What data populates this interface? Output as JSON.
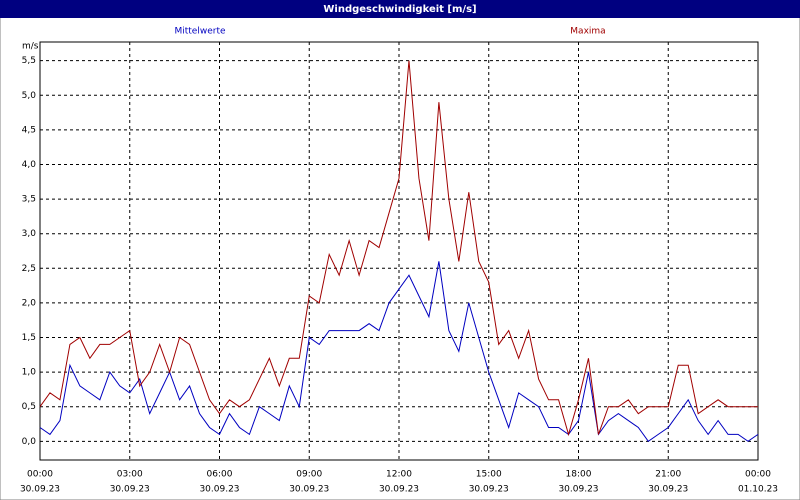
{
  "chart_data": {
    "type": "line",
    "title": "Windgeschwindigkeit [m/s]",
    "y_label": "m/s",
    "x": [
      "30.09.23 00:00",
      "30.09.23 00:20",
      "30.09.23 00:40",
      "30.09.23 01:00",
      "30.09.23 01:20",
      "30.09.23 01:40",
      "30.09.23 02:00",
      "30.09.23 02:20",
      "30.09.23 02:40",
      "30.09.23 03:00",
      "30.09.23 03:20",
      "30.09.23 03:40",
      "30.09.23 04:00",
      "30.09.23 04:20",
      "30.09.23 04:40",
      "30.09.23 05:00",
      "30.09.23 05:20",
      "30.09.23 05:40",
      "30.09.23 06:00",
      "30.09.23 06:20",
      "30.09.23 06:40",
      "30.09.23 07:00",
      "30.09.23 07:20",
      "30.09.23 07:40",
      "30.09.23 08:00",
      "30.09.23 08:20",
      "30.09.23 08:40",
      "30.09.23 09:00",
      "30.09.23 09:20",
      "30.09.23 09:40",
      "30.09.23 10:00",
      "30.09.23 10:20",
      "30.09.23 10:40",
      "30.09.23 11:00",
      "30.09.23 11:20",
      "30.09.23 11:40",
      "30.09.23 12:00",
      "30.09.23 12:20",
      "30.09.23 12:40",
      "30.09.23 13:00",
      "30.09.23 13:20",
      "30.09.23 13:40",
      "30.09.23 14:00",
      "30.09.23 14:20",
      "30.09.23 14:40",
      "30.09.23 15:00",
      "30.09.23 15:20",
      "30.09.23 15:40",
      "30.09.23 16:00",
      "30.09.23 16:20",
      "30.09.23 16:40",
      "30.09.23 17:00",
      "30.09.23 17:20",
      "30.09.23 17:40",
      "30.09.23 18:00",
      "30.09.23 18:20",
      "30.09.23 18:40",
      "30.09.23 19:00",
      "30.09.23 19:20",
      "30.09.23 19:40",
      "30.09.23 20:00",
      "30.09.23 20:20",
      "30.09.23 20:40",
      "30.09.23 21:00",
      "30.09.23 21:20",
      "30.09.23 21:40",
      "30.09.23 22:00",
      "30.09.23 22:20",
      "30.09.23 22:40",
      "30.09.23 23:00",
      "30.09.23 23:20",
      "30.09.23 23:40",
      "01.10.23 00:00"
    ],
    "series": [
      {
        "name": "Mittelwerte",
        "color": "#0000c0",
        "values": [
          0.2,
          0.1,
          0.3,
          1.1,
          0.8,
          0.7,
          0.6,
          1.0,
          0.8,
          0.7,
          0.9,
          0.4,
          0.7,
          1.0,
          0.6,
          0.8,
          0.4,
          0.2,
          0.1,
          0.4,
          0.2,
          0.1,
          0.5,
          0.4,
          0.3,
          0.8,
          0.5,
          1.5,
          1.4,
          1.6,
          1.6,
          1.6,
          1.6,
          1.7,
          1.6,
          2.0,
          2.2,
          2.4,
          2.1,
          1.8,
          2.6,
          1.6,
          1.3,
          2.0,
          1.5,
          1.0,
          0.6,
          0.2,
          0.7,
          0.6,
          0.5,
          0.2,
          0.2,
          0.1,
          0.3,
          1.0,
          0.1,
          0.3,
          0.4,
          0.3,
          0.2,
          0.0,
          0.1,
          0.2,
          0.4,
          0.6,
          0.3,
          0.1,
          0.3,
          0.1,
          0.1,
          0.0,
          0.1
        ]
      },
      {
        "name": "Maxima",
        "color": "#a00000",
        "values": [
          0.5,
          0.7,
          0.6,
          1.4,
          1.5,
          1.2,
          1.4,
          1.4,
          1.5,
          1.6,
          0.8,
          1.0,
          1.4,
          1.0,
          1.5,
          1.4,
          1.0,
          0.6,
          0.4,
          0.6,
          0.5,
          0.6,
          0.9,
          1.2,
          0.8,
          1.2,
          1.2,
          2.1,
          2.0,
          2.7,
          2.4,
          2.9,
          2.4,
          2.9,
          2.8,
          3.3,
          3.8,
          5.5,
          3.8,
          2.9,
          4.9,
          3.5,
          2.6,
          3.6,
          2.6,
          2.3,
          1.4,
          1.6,
          1.2,
          1.6,
          0.9,
          0.6,
          0.6,
          0.1,
          0.6,
          1.2,
          0.1,
          0.5,
          0.5,
          0.6,
          0.4,
          0.5,
          0.5,
          0.5,
          1.1,
          1.1,
          0.4,
          0.5,
          0.6,
          0.5,
          0.5,
          0.5,
          0.5
        ]
      }
    ],
    "xlim": [
      "30.09.23 00:00",
      "01.10.23 00:00"
    ],
    "xticks": [
      {
        "value": "30.09.23 00:00",
        "label": [
          "00:00",
          "30.09.23"
        ]
      },
      {
        "value": "30.09.23 03:00",
        "label": [
          "03:00",
          "30.09.23"
        ]
      },
      {
        "value": "30.09.23 06:00",
        "label": [
          "06:00",
          "30.09.23"
        ]
      },
      {
        "value": "30.09.23 09:00",
        "label": [
          "09:00",
          "30.09.23"
        ]
      },
      {
        "value": "30.09.23 12:00",
        "label": [
          "12:00",
          "30.09.23"
        ]
      },
      {
        "value": "30.09.23 15:00",
        "label": [
          "15:00",
          "30.09.23"
        ]
      },
      {
        "value": "30.09.23 18:00",
        "label": [
          "18:00",
          "30.09.23"
        ]
      },
      {
        "value": "30.09.23 21:00",
        "label": [
          "21:00",
          "30.09.23"
        ]
      },
      {
        "value": "01.10.23 00:00",
        "label": [
          "00:00",
          "01.10.23"
        ]
      }
    ],
    "ylim": [
      -0.27,
      5.77
    ],
    "yticks": [
      {
        "value": 0,
        "label": "0,0"
      },
      {
        "value": 0.5,
        "label": "0,5"
      },
      {
        "value": 1,
        "label": "1,0"
      },
      {
        "value": 1.5,
        "label": "1,5"
      },
      {
        "value": 2,
        "label": "2,0"
      },
      {
        "value": 2.5,
        "label": "2,5"
      },
      {
        "value": 3,
        "label": "3,0"
      },
      {
        "value": 3.5,
        "label": "3,5"
      },
      {
        "value": 4,
        "label": "4,0"
      },
      {
        "value": 4.5,
        "label": "4,5"
      },
      {
        "value": 5,
        "label": "5,0"
      },
      {
        "value": 5.5,
        "label": "5,5"
      }
    ],
    "grid": true
  }
}
